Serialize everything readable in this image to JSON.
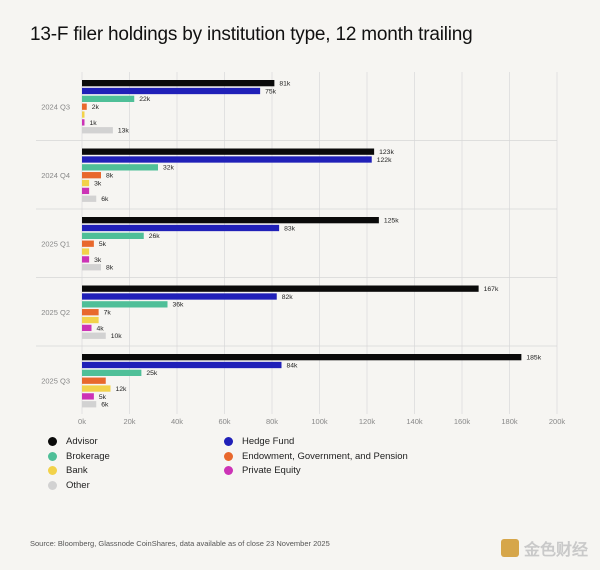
{
  "title": "13-F filer holdings by institution type, 12 month trailing",
  "source": "Source: Bloomberg, Glassnode CoinShares, data available as of close 23 November 2025",
  "watermark": "金色财经",
  "colors": {
    "Advisor": "#0a0a0a",
    "Hedge Fund": "#2020b8",
    "Brokerage": "#4fbf98",
    "Endowment, Government, and Pension": "#e8682d",
    "Bank": "#f2d24a",
    "Private Equity": "#cc33b6",
    "Other": "#d2d2d2"
  },
  "legend": [
    {
      "name": "Advisor",
      "color": "#0a0a0a"
    },
    {
      "name": "Hedge Fund",
      "color": "#2020b8"
    },
    {
      "name": "Brokerage",
      "color": "#4fbf98"
    },
    {
      "name": "Endowment, Government, and Pension",
      "color": "#e8682d"
    },
    {
      "name": "Bank",
      "color": "#f2d24a"
    },
    {
      "name": "Private Equity",
      "color": "#cc33b6"
    },
    {
      "name": "Other",
      "color": "#d2d2d2"
    }
  ],
  "chart_data": {
    "type": "bar",
    "orientation": "horizontal",
    "title": "13-F filer holdings by institution type, 12 month trailing",
    "categories": [
      "2024 Q3",
      "2024 Q4",
      "2025 Q1",
      "2025 Q2",
      "2025 Q3"
    ],
    "series": [
      {
        "name": "Advisor",
        "values": [
          81000,
          123000,
          125000,
          167000,
          185000
        ],
        "labels": [
          "81k",
          "123k",
          "125k",
          "167k",
          "185k"
        ]
      },
      {
        "name": "Hedge Fund",
        "values": [
          75000,
          122000,
          83000,
          82000,
          84000
        ],
        "labels": [
          "75k",
          "122k",
          "83k",
          "82k",
          "84k"
        ]
      },
      {
        "name": "Brokerage",
        "values": [
          22000,
          32000,
          26000,
          36000,
          25000
        ],
        "labels": [
          "22k",
          "32k",
          "26k",
          "36k",
          "25k"
        ]
      },
      {
        "name": "Endowment, Government, and Pension",
        "values": [
          2000,
          8000,
          5000,
          7000,
          10000
        ],
        "labels": [
          "2k",
          "8k",
          "5k",
          "7k",
          ""
        ]
      },
      {
        "name": "Bank",
        "values": [
          1000,
          3000,
          3000,
          7000,
          12000
        ],
        "labels": [
          "",
          "3k",
          "",
          "",
          "12k"
        ]
      },
      {
        "name": "Private Equity",
        "values": [
          1000,
          3000,
          3000,
          4000,
          5000
        ],
        "labels": [
          "1k",
          "",
          "3k",
          "4k",
          "5k"
        ]
      },
      {
        "name": "Other",
        "values": [
          13000,
          6000,
          8000,
          10000,
          6000
        ],
        "labels": [
          "13k",
          "6k",
          "8k",
          "10k",
          "6k"
        ]
      }
    ],
    "xlim": [
      0,
      200000
    ],
    "xticks": [
      0,
      20000,
      40000,
      60000,
      80000,
      100000,
      120000,
      140000,
      160000,
      180000,
      200000
    ],
    "xtick_labels": [
      "0k",
      "20k",
      "40k",
      "60k",
      "80k",
      "100k",
      "120k",
      "140k",
      "160k",
      "180k",
      "200k"
    ],
    "grid": "vertical lines",
    "legend_position": "bottom"
  }
}
